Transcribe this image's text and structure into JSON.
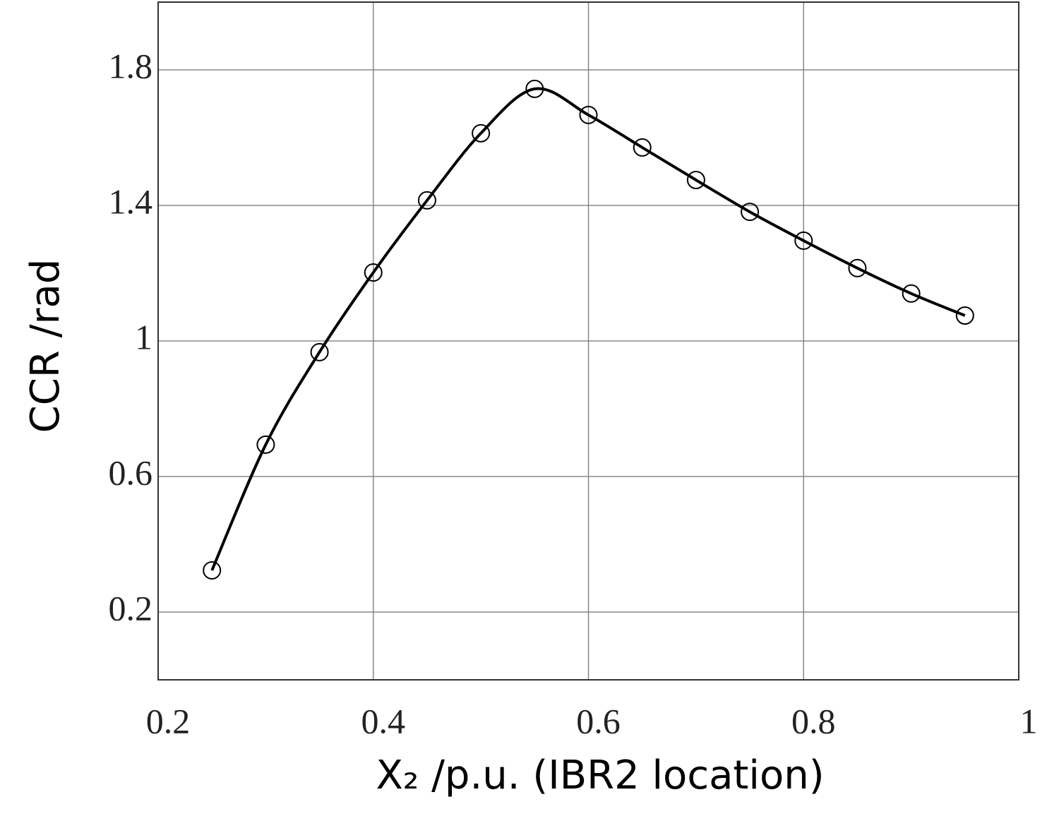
{
  "chart_data": {
    "type": "line",
    "xlabel": "X₂ /p.u. (IBR2 location)",
    "ylabel": "CCR /rad",
    "x": [
      0.25,
      0.3,
      0.35,
      0.4,
      0.45,
      0.5,
      0.55,
      0.6,
      0.65,
      0.7,
      0.75,
      0.8,
      0.85,
      0.9,
      0.95
    ],
    "series": [
      {
        "color": "#000000",
        "values": [
          0.323,
          0.694,
          0.967,
          1.202,
          1.415,
          1.613,
          1.744,
          1.667,
          1.571,
          1.475,
          1.381,
          1.296,
          1.215,
          1.14,
          1.075
        ]
      }
    ],
    "xlim": [
      0.2,
      1
    ],
    "ylim": [
      0,
      2
    ],
    "xticks": [
      0.2,
      0.4,
      0.6,
      0.8,
      1
    ],
    "yticks": [
      0.2,
      0.6,
      1,
      1.4,
      1.8
    ],
    "grid": true,
    "marker": "circle"
  }
}
